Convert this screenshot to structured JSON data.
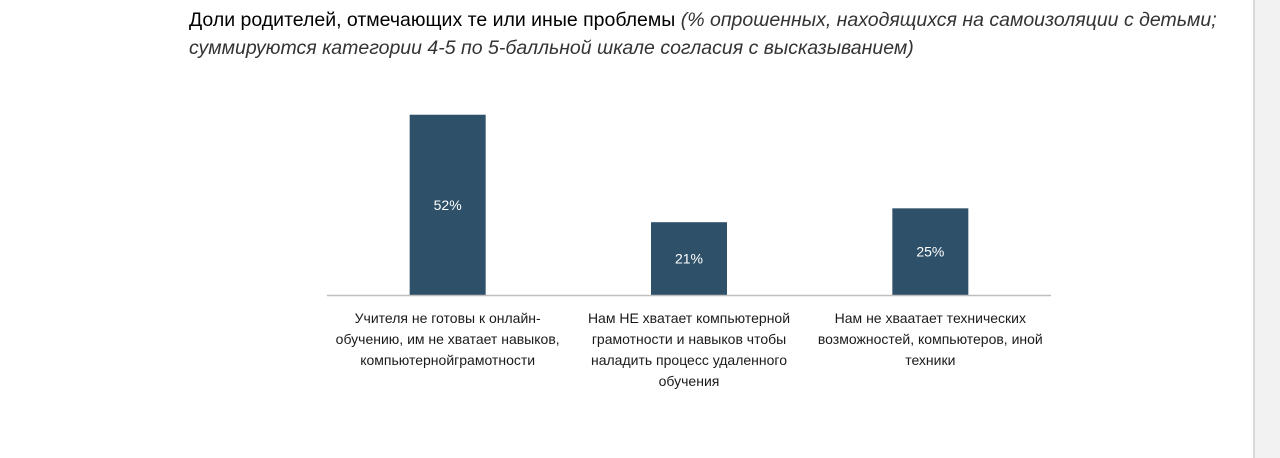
{
  "chart_data": {
    "type": "bar",
    "title": "Доли родителей, отмечающих те или иные проблемы",
    "subtitle": "(% опрошенных, находящихся на самоизоляции с детьми; суммируются категории 4-5 по 5-балльной шкале согласия с высказыванием)",
    "categories": [
      "Учителя не готовы к  онлайн-обучению, им не хватает навыков, компьютернойграмотности",
      "Нам НЕ хватает компьютерной грамотности и навыков чтобы наладить процесс удаленного обучения",
      "Нам не  хваатает технических возможностей, компьютеров, иной техники"
    ],
    "values": [
      52,
      21,
      25
    ],
    "data_labels": [
      "52%",
      "21%",
      "25%"
    ],
    "ylim": [
      0,
      60
    ],
    "grid": false,
    "legend": "none",
    "xlabel": "",
    "ylabel": "",
    "colors": {
      "bar": "#2e5069",
      "bar_label": "#ffffff",
      "axis": "#bfbfbf"
    }
  }
}
